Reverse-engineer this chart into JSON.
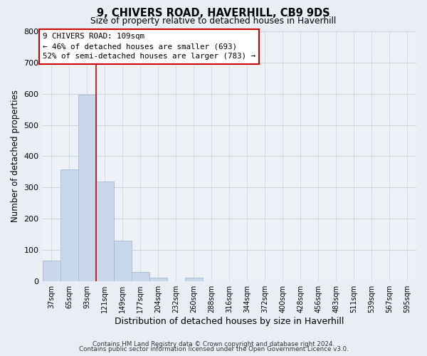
{
  "title": "9, CHIVERS ROAD, HAVERHILL, CB9 9DS",
  "subtitle": "Size of property relative to detached houses in Haverhill",
  "xlabel": "Distribution of detached houses by size in Haverhill",
  "ylabel": "Number of detached properties",
  "bar_labels": [
    "37sqm",
    "65sqm",
    "93sqm",
    "121sqm",
    "149sqm",
    "177sqm",
    "204sqm",
    "232sqm",
    "260sqm",
    "288sqm",
    "316sqm",
    "344sqm",
    "372sqm",
    "400sqm",
    "428sqm",
    "456sqm",
    "483sqm",
    "511sqm",
    "539sqm",
    "567sqm",
    "595sqm"
  ],
  "bar_values": [
    65,
    357,
    597,
    319,
    130,
    30,
    10,
    0,
    10,
    0,
    0,
    0,
    0,
    0,
    0,
    0,
    0,
    0,
    0,
    0,
    0
  ],
  "bar_color": "#c8d8ea",
  "bar_edge_color": "#9ab4cc",
  "vline_color": "#cc0000",
  "annotation_title": "9 CHIVERS ROAD: 109sqm",
  "annotation_line1": "← 46% of detached houses are smaller (693)",
  "annotation_line2": "52% of semi-detached houses are larger (783) →",
  "annotation_box_color": "#ffffff",
  "annotation_border_color": "#cc0000",
  "ylim": [
    0,
    800
  ],
  "yticks": [
    0,
    100,
    200,
    300,
    400,
    500,
    600,
    700,
    800
  ],
  "footer1": "Contains HM Land Registry data © Crown copyright and database right 2024.",
  "footer2": "Contains public sector information licensed under the Open Government Licence v3.0.",
  "bg_color": "#e8eef4",
  "plot_bg_color": "#eef2f7",
  "grid_color": "#c8d4e0"
}
